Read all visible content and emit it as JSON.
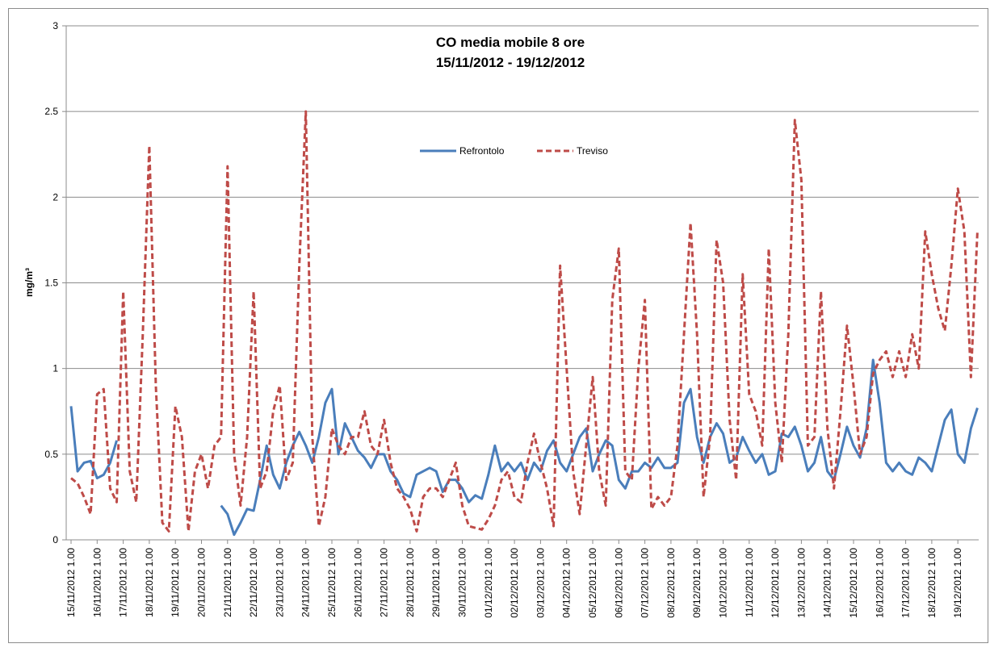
{
  "chart_data": {
    "type": "line",
    "title": "CO media mobile 8 ore",
    "subtitle": "15/11/2012 - 19/12/2012",
    "y_label": "mg/m³",
    "ylim": [
      0,
      3
    ],
    "yticks": [
      0,
      0.5,
      1,
      1.5,
      2,
      2.5,
      3
    ],
    "grid": true,
    "categories": [
      "15/11/2012 1.00",
      null,
      null,
      null,
      "16/11/2012 1.00",
      null,
      null,
      null,
      "17/11/2012 1.00",
      null,
      null,
      null,
      "18/11/2012 1.00",
      null,
      null,
      null,
      "19/11/2012 1.00",
      null,
      null,
      null,
      "20/11/2012 1.00",
      null,
      null,
      null,
      "21/11/2012 1.00",
      null,
      null,
      null,
      "22/11/2012 1.00",
      null,
      null,
      null,
      "23/11/2012 1.00",
      null,
      null,
      null,
      "24/11/2012 1.00",
      null,
      null,
      null,
      "25/11/2012 1.00",
      null,
      null,
      null,
      "26/11/2012 1.00",
      null,
      null,
      null,
      "27/11/2012 1.00",
      null,
      null,
      null,
      "28/11/2012 1.00",
      null,
      null,
      null,
      "29/11/2012 1.00",
      null,
      null,
      null,
      "30/11/2012 1.00",
      null,
      null,
      null,
      "01/12/2012 1.00",
      null,
      null,
      null,
      "02/12/2012 1.00",
      null,
      null,
      null,
      "03/12/2012 1.00",
      null,
      null,
      null,
      "04/12/2012 1.00",
      null,
      null,
      null,
      "05/12/2012 1.00",
      null,
      null,
      null,
      "06/12/2012 1.00",
      null,
      null,
      null,
      "07/12/2012 1.00",
      null,
      null,
      null,
      "08/12/2012 1.00",
      null,
      null,
      null,
      "09/12/2012 1.00",
      null,
      null,
      null,
      "10/12/2012 1.00",
      null,
      null,
      null,
      "11/12/2012 1.00",
      null,
      null,
      null,
      "12/12/2012 1.00",
      null,
      null,
      null,
      "13/12/2012 1.00",
      null,
      null,
      null,
      "14/12/2012 1.00",
      null,
      null,
      null,
      "15/12/2012 1.00",
      null,
      null,
      null,
      "16/12/2012 1.00",
      null,
      null,
      null,
      "17/12/2012 1.00",
      null,
      null,
      null,
      "18/12/2012 1.00",
      null,
      null,
      null,
      "19/12/2012 1.00",
      null,
      null,
      null
    ],
    "series": [
      {
        "name": "Refrontolo",
        "color": "#4a7ebb",
        "dashed": false,
        "values": [
          0.78,
          0.4,
          0.45,
          0.46,
          0.36,
          0.38,
          0.45,
          0.58,
          null,
          null,
          null,
          null,
          null,
          null,
          null,
          null,
          null,
          null,
          null,
          null,
          null,
          null,
          null,
          0.2,
          0.15,
          0.03,
          0.1,
          0.18,
          0.17,
          0.35,
          0.55,
          0.38,
          0.3,
          0.45,
          0.55,
          0.63,
          0.55,
          0.45,
          0.6,
          0.8,
          0.88,
          0.5,
          0.68,
          0.6,
          0.52,
          0.48,
          0.42,
          0.5,
          0.5,
          0.4,
          0.35,
          0.27,
          0.25,
          0.38,
          0.4,
          0.42,
          0.4,
          0.28,
          0.35,
          0.35,
          0.3,
          0.22,
          0.26,
          0.24,
          0.38,
          0.55,
          0.4,
          0.45,
          0.4,
          0.45,
          0.35,
          0.45,
          0.4,
          0.52,
          0.58,
          0.45,
          0.4,
          0.5,
          0.6,
          0.65,
          0.4,
          0.5,
          0.58,
          0.55,
          0.35,
          0.3,
          0.4,
          0.4,
          0.45,
          0.42,
          0.48,
          0.42,
          0.42,
          0.45,
          0.8,
          0.88,
          0.6,
          0.45,
          0.6,
          0.68,
          0.62,
          0.45,
          0.48,
          0.6,
          0.52,
          0.45,
          0.5,
          0.38,
          0.4,
          0.62,
          0.6,
          0.66,
          0.55,
          0.4,
          0.45,
          0.6,
          0.4,
          0.35,
          0.5,
          0.66,
          0.55,
          0.48,
          0.65,
          1.05,
          0.8,
          0.45,
          0.4,
          0.45,
          0.4,
          0.38,
          0.48,
          0.45,
          0.4,
          0.55,
          0.7,
          0.76,
          0.5,
          0.45,
          0.65,
          0.77
        ]
      },
      {
        "name": "Treviso",
        "color": "#be4b48",
        "dashed": true,
        "values": [
          0.36,
          0.33,
          0.25,
          0.15,
          0.85,
          0.88,
          0.3,
          0.22,
          1.45,
          0.4,
          0.22,
          1.2,
          2.3,
          0.9,
          0.1,
          0.05,
          0.78,
          0.6,
          0.05,
          0.4,
          0.5,
          0.3,
          0.55,
          0.6,
          2.18,
          0.5,
          0.2,
          0.6,
          1.45,
          0.3,
          0.4,
          0.75,
          0.9,
          0.35,
          0.45,
          1.6,
          2.5,
          0.6,
          0.08,
          0.25,
          0.65,
          0.55,
          0.5,
          0.6,
          0.6,
          0.75,
          0.55,
          0.5,
          0.7,
          0.45,
          0.3,
          0.25,
          0.18,
          0.05,
          0.25,
          0.3,
          0.3,
          0.25,
          0.35,
          0.45,
          0.2,
          0.08,
          0.07,
          0.06,
          0.12,
          0.2,
          0.35,
          0.4,
          0.25,
          0.22,
          0.45,
          0.62,
          0.45,
          0.3,
          0.08,
          1.6,
          1.0,
          0.4,
          0.15,
          0.55,
          0.95,
          0.4,
          0.2,
          1.4,
          1.7,
          0.4,
          0.35,
          1.0,
          1.4,
          0.18,
          0.25,
          0.2,
          0.25,
          0.55,
          1.2,
          1.85,
          1.2,
          0.25,
          0.6,
          1.75,
          1.5,
          0.7,
          0.35,
          1.55,
          0.85,
          0.75,
          0.55,
          1.7,
          0.8,
          0.45,
          1.2,
          2.45,
          2.1,
          0.55,
          0.6,
          1.45,
          0.65,
          0.3,
          0.75,
          1.25,
          0.9,
          0.5,
          0.6,
          0.97,
          1.05,
          1.1,
          0.95,
          1.1,
          0.95,
          1.2,
          1.0,
          1.8,
          1.55,
          1.35,
          1.22,
          1.6,
          2.05,
          1.8,
          0.95,
          1.8
        ]
      }
    ]
  }
}
